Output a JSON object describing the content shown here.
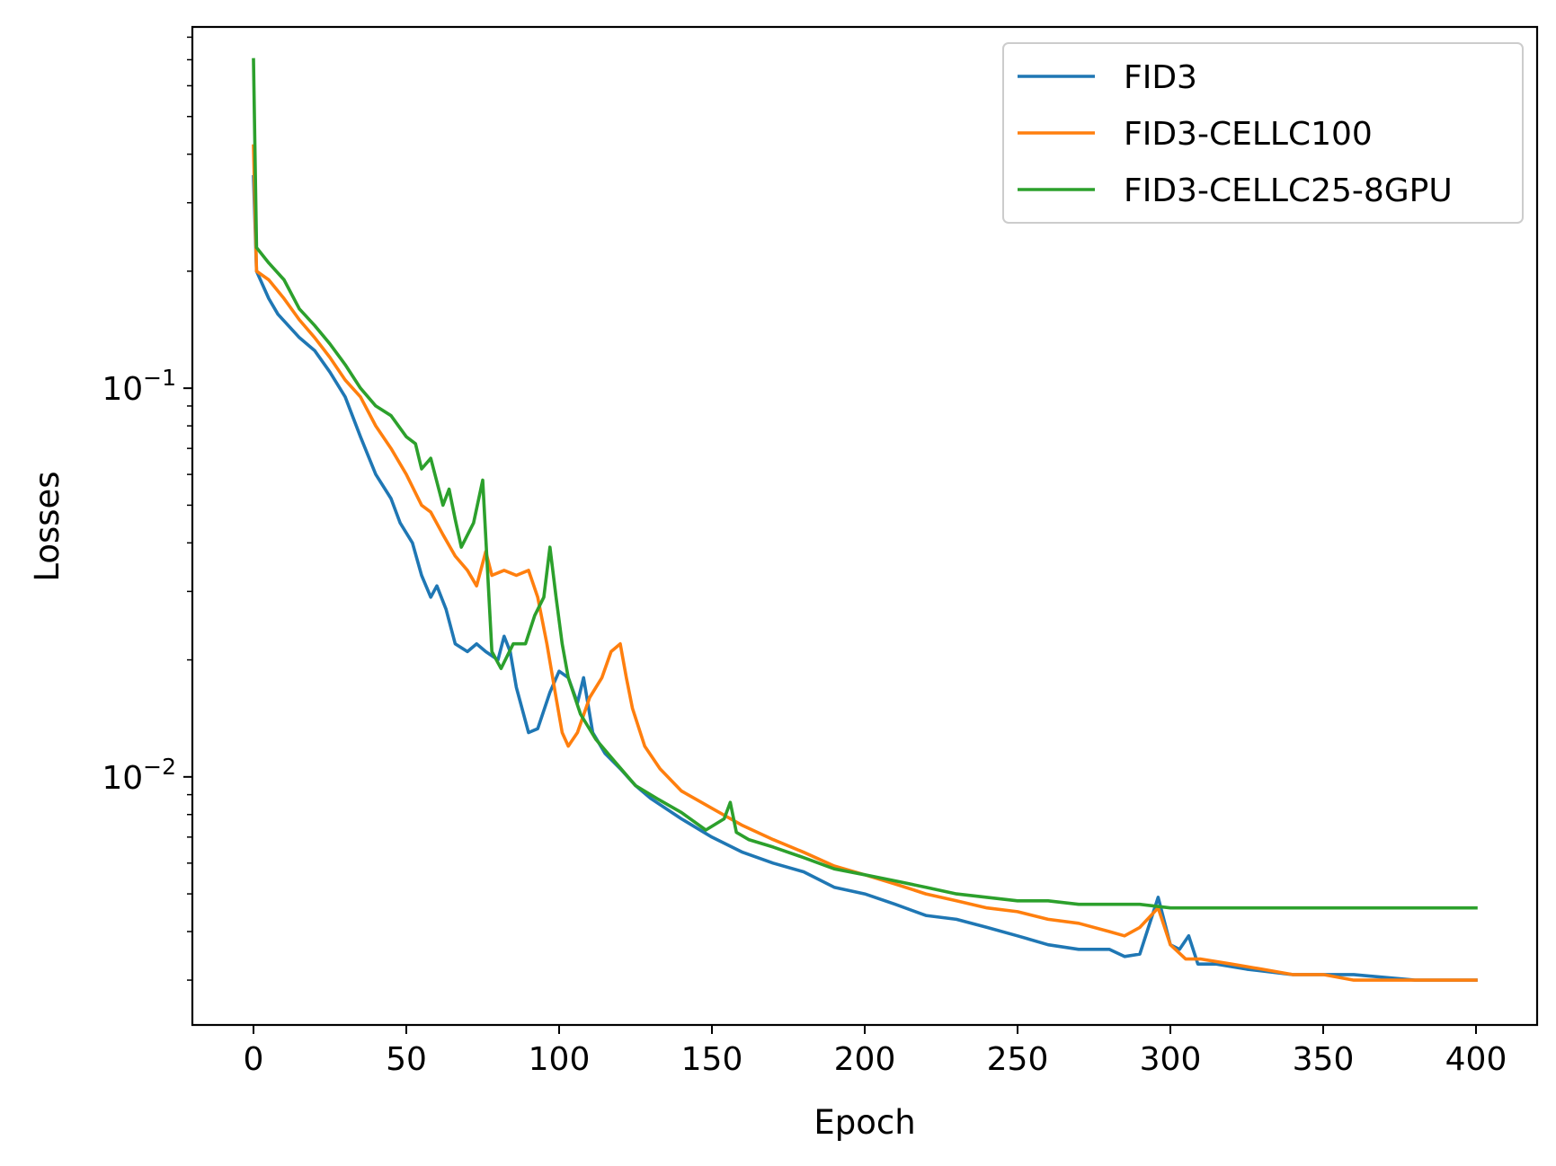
{
  "chart_data": {
    "type": "line",
    "title": "",
    "xlabel": "Epoch",
    "ylabel": "Losses",
    "xlim": [
      -20,
      420
    ],
    "ylim": [
      0.0023,
      0.85
    ],
    "yscale": "log",
    "grid": false,
    "legend_position": "top-right",
    "x_ticks": [
      0,
      50,
      100,
      150,
      200,
      250,
      300,
      350,
      400
    ],
    "y_ticks": [
      {
        "value": 0.1,
        "base": "10",
        "exp": "−1"
      },
      {
        "value": 0.01,
        "base": "10",
        "exp": "−2"
      }
    ],
    "series": [
      {
        "name": "FID3",
        "color": "#1f77b4",
        "points": [
          [
            0,
            0.35
          ],
          [
            1,
            0.2
          ],
          [
            5,
            0.17
          ],
          [
            8,
            0.155
          ],
          [
            15,
            0.135
          ],
          [
            20,
            0.125
          ],
          [
            25,
            0.11
          ],
          [
            30,
            0.095
          ],
          [
            35,
            0.075
          ],
          [
            40,
            0.06
          ],
          [
            45,
            0.052
          ],
          [
            48,
            0.045
          ],
          [
            52,
            0.04
          ],
          [
            55,
            0.033
          ],
          [
            58,
            0.029
          ],
          [
            60,
            0.031
          ],
          [
            63,
            0.027
          ],
          [
            66,
            0.022
          ],
          [
            70,
            0.021
          ],
          [
            73,
            0.022
          ],
          [
            76,
            0.021
          ],
          [
            80,
            0.02
          ],
          [
            82,
            0.023
          ],
          [
            84,
            0.021
          ],
          [
            86,
            0.017
          ],
          [
            90,
            0.013
          ],
          [
            93,
            0.0133
          ],
          [
            97,
            0.0165
          ],
          [
            100,
            0.0187
          ],
          [
            103,
            0.018
          ],
          [
            106,
            0.0155
          ],
          [
            108,
            0.018
          ],
          [
            111,
            0.013
          ],
          [
            115,
            0.0115
          ],
          [
            120,
            0.0105
          ],
          [
            125,
            0.0095
          ],
          [
            130,
            0.0088
          ],
          [
            140,
            0.0078
          ],
          [
            150,
            0.007
          ],
          [
            160,
            0.0064
          ],
          [
            170,
            0.006
          ],
          [
            180,
            0.0057
          ],
          [
            190,
            0.0052
          ],
          [
            200,
            0.005
          ],
          [
            210,
            0.0047
          ],
          [
            220,
            0.0044
          ],
          [
            230,
            0.0043
          ],
          [
            240,
            0.0041
          ],
          [
            250,
            0.0039
          ],
          [
            260,
            0.0037
          ],
          [
            270,
            0.0036
          ],
          [
            280,
            0.0036
          ],
          [
            285,
            0.00345
          ],
          [
            290,
            0.0035
          ],
          [
            296,
            0.0049
          ],
          [
            300,
            0.0037
          ],
          [
            303,
            0.0036
          ],
          [
            306,
            0.0039
          ],
          [
            309,
            0.0033
          ],
          [
            315,
            0.0033
          ],
          [
            325,
            0.0032
          ],
          [
            340,
            0.0031
          ],
          [
            360,
            0.0031
          ],
          [
            380,
            0.003
          ],
          [
            400,
            0.003
          ]
        ]
      },
      {
        "name": "FID3-CELLC100",
        "color": "#ff7f0e",
        "points": [
          [
            0,
            0.42
          ],
          [
            1,
            0.2
          ],
          [
            5,
            0.19
          ],
          [
            10,
            0.17
          ],
          [
            15,
            0.15
          ],
          [
            20,
            0.135
          ],
          [
            25,
            0.12
          ],
          [
            30,
            0.105
          ],
          [
            35,
            0.095
          ],
          [
            40,
            0.08
          ],
          [
            45,
            0.07
          ],
          [
            50,
            0.06
          ],
          [
            55,
            0.05
          ],
          [
            58,
            0.048
          ],
          [
            62,
            0.042
          ],
          [
            66,
            0.037
          ],
          [
            70,
            0.034
          ],
          [
            73,
            0.031
          ],
          [
            76,
            0.038
          ],
          [
            78,
            0.033
          ],
          [
            82,
            0.034
          ],
          [
            86,
            0.033
          ],
          [
            90,
            0.034
          ],
          [
            93,
            0.029
          ],
          [
            96,
            0.022
          ],
          [
            99,
            0.016
          ],
          [
            101,
            0.013
          ],
          [
            103,
            0.012
          ],
          [
            106,
            0.013
          ],
          [
            110,
            0.016
          ],
          [
            114,
            0.018
          ],
          [
            117,
            0.021
          ],
          [
            120,
            0.022
          ],
          [
            122,
            0.018
          ],
          [
            124,
            0.015
          ],
          [
            128,
            0.012
          ],
          [
            133,
            0.0105
          ],
          [
            140,
            0.0092
          ],
          [
            150,
            0.0083
          ],
          [
            160,
            0.0075
          ],
          [
            170,
            0.0069
          ],
          [
            180,
            0.0064
          ],
          [
            190,
            0.0059
          ],
          [
            200,
            0.0056
          ],
          [
            210,
            0.0053
          ],
          [
            220,
            0.005
          ],
          [
            230,
            0.0048
          ],
          [
            240,
            0.0046
          ],
          [
            250,
            0.0045
          ],
          [
            260,
            0.0043
          ],
          [
            270,
            0.0042
          ],
          [
            280,
            0.004
          ],
          [
            285,
            0.0039
          ],
          [
            290,
            0.0041
          ],
          [
            296,
            0.0046
          ],
          [
            300,
            0.0037
          ],
          [
            305,
            0.0034
          ],
          [
            310,
            0.0034
          ],
          [
            320,
            0.0033
          ],
          [
            330,
            0.0032
          ],
          [
            340,
            0.0031
          ],
          [
            350,
            0.0031
          ],
          [
            360,
            0.003
          ],
          [
            370,
            0.003
          ],
          [
            380,
            0.003
          ],
          [
            390,
            0.003
          ],
          [
            400,
            0.003
          ]
        ]
      },
      {
        "name": "FID3-CELLC25-8GPU",
        "color": "#2ca02c",
        "points": [
          [
            0,
            0.7
          ],
          [
            1,
            0.23
          ],
          [
            5,
            0.21
          ],
          [
            10,
            0.19
          ],
          [
            15,
            0.16
          ],
          [
            20,
            0.145
          ],
          [
            25,
            0.13
          ],
          [
            30,
            0.115
          ],
          [
            35,
            0.1
          ],
          [
            40,
            0.09
          ],
          [
            45,
            0.085
          ],
          [
            50,
            0.075
          ],
          [
            53,
            0.072
          ],
          [
            55,
            0.062
          ],
          [
            58,
            0.066
          ],
          [
            62,
            0.05
          ],
          [
            64,
            0.055
          ],
          [
            66,
            0.046
          ],
          [
            68,
            0.039
          ],
          [
            72,
            0.045
          ],
          [
            75,
            0.058
          ],
          [
            78,
            0.021
          ],
          [
            81,
            0.019
          ],
          [
            85,
            0.022
          ],
          [
            89,
            0.022
          ],
          [
            92,
            0.026
          ],
          [
            95,
            0.029
          ],
          [
            97,
            0.039
          ],
          [
            99,
            0.029
          ],
          [
            101,
            0.022
          ],
          [
            103,
            0.018
          ],
          [
            107,
            0.0145
          ],
          [
            112,
            0.0125
          ],
          [
            118,
            0.011
          ],
          [
            125,
            0.0095
          ],
          [
            132,
            0.0088
          ],
          [
            140,
            0.0081
          ],
          [
            148,
            0.0073
          ],
          [
            154,
            0.0078
          ],
          [
            156,
            0.0086
          ],
          [
            158,
            0.0072
          ],
          [
            162,
            0.0069
          ],
          [
            170,
            0.0066
          ],
          [
            180,
            0.0062
          ],
          [
            190,
            0.0058
          ],
          [
            200,
            0.0056
          ],
          [
            210,
            0.0054
          ],
          [
            220,
            0.0052
          ],
          [
            230,
            0.005
          ],
          [
            240,
            0.0049
          ],
          [
            250,
            0.0048
          ],
          [
            260,
            0.0048
          ],
          [
            270,
            0.0047
          ],
          [
            280,
            0.0047
          ],
          [
            290,
            0.0047
          ],
          [
            300,
            0.0046
          ],
          [
            320,
            0.0046
          ],
          [
            340,
            0.0046
          ],
          [
            360,
            0.0046
          ],
          [
            380,
            0.0046
          ],
          [
            400,
            0.0046
          ]
        ]
      }
    ]
  }
}
